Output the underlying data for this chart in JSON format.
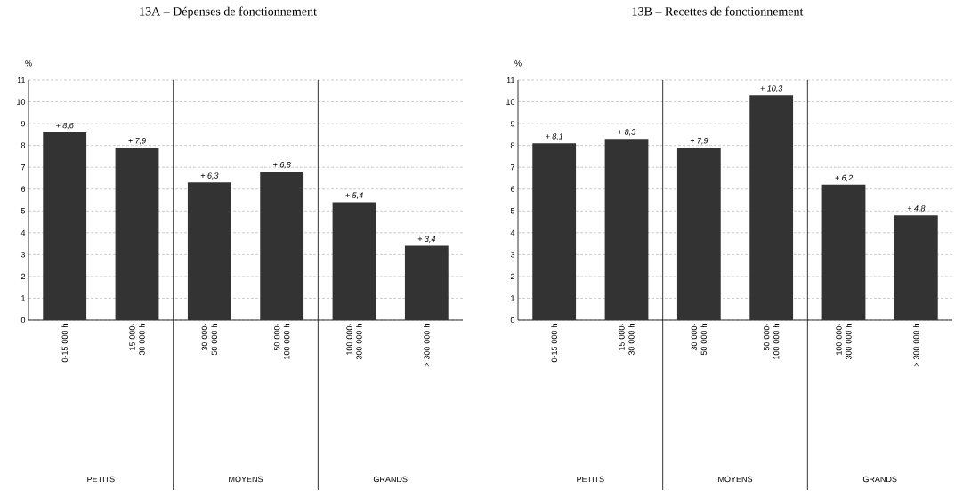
{
  "chart_data": [
    {
      "type": "bar",
      "title": "13A – Dépenses de fonctionnement",
      "ylabel": "%",
      "categories": [
        "0-15 000 h",
        "15 000-30 000 h",
        "30 000-50 000 h",
        "50 000-100 000 h",
        "100 000-300 000 h",
        "> 300 000 h"
      ],
      "values": [
        8.6,
        7.9,
        6.3,
        6.8,
        5.4,
        3.4
      ],
      "value_labels": [
        "+ 8,6",
        "+ 7,9",
        "+ 6,3",
        "+ 6,8",
        "+ 5,4",
        "+ 3,4"
      ],
      "color": "#333333",
      "ylim": [
        0,
        11
      ],
      "yticks": [
        0,
        1,
        2,
        3,
        4,
        5,
        6,
        7,
        8,
        9,
        10,
        11
      ],
      "grid": "y",
      "annotations": [
        "PETITS",
        "MOYENS",
        "GRANDS"
      ]
    },
    {
      "type": "bar",
      "title": "13B – Recettes de fonctionnement",
      "ylabel": "%",
      "categories": [
        "0-15 000 h",
        "15 000-30 000 h",
        "30 000-50 000 h",
        "50 000-100 000 h",
        "100 000-300 000 h",
        "> 300 000 h"
      ],
      "values": [
        8.1,
        8.3,
        7.9,
        10.3,
        6.2,
        4.8
      ],
      "value_labels": [
        "+ 8,1",
        "+ 8,3",
        "+ 7,9",
        "+ 10,3",
        "+ 6,2",
        "+ 4,8"
      ],
      "color": "#333333",
      "ylim": [
        0,
        11
      ],
      "yticks": [
        0,
        1,
        2,
        3,
        4,
        5,
        6,
        7,
        8,
        9,
        10,
        11
      ],
      "grid": "y",
      "annotations": [
        "PETITS",
        "MOYENS",
        "GRANDS"
      ]
    }
  ]
}
